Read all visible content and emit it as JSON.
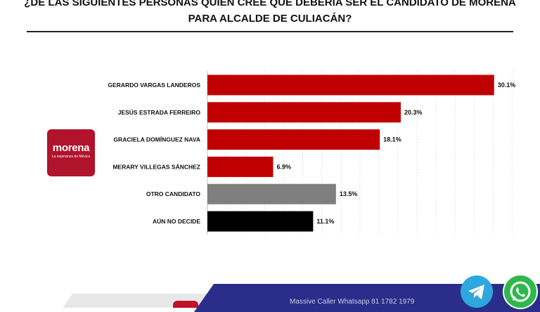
{
  "header": {
    "title_line1": "¿DE LAS SIGUIENTES PERSONAS QUIÉN CREE QUE DEBERÍA SER EL CANDIDATO DE MORENA",
    "title_line2": "PARA ALCALDE DE CULIACÁN?"
  },
  "logo": {
    "word": "morena",
    "tagline": "La esperanza de México"
  },
  "footer": {
    "text": "Massive Caller   Whatsapp   81 1782 1979"
  },
  "icons": {
    "telegram": "telegram-icon",
    "whatsapp": "whatsapp-icon"
  },
  "chart_data": {
    "type": "bar",
    "orientation": "horizontal",
    "categories": [
      "GERARDO VARGAS LANDEROS",
      "JESÚS ESTRADA FERREIRO",
      "GRACIELA DOMÍNGUEZ NAVA",
      "MERARY VILLEGAS SÁNCHEZ",
      "OTRO CANDIDATO",
      "AÚN NO DECIDE"
    ],
    "values": [
      30.1,
      20.3,
      18.1,
      6.9,
      13.5,
      11.1
    ],
    "value_labels": [
      "30.1%",
      "20.3%",
      "18.1%",
      "6.9%",
      "13.5%",
      "11.1%"
    ],
    "colors": [
      "#c00000",
      "#c00000",
      "#c00000",
      "#c00000",
      "#7f7f7f",
      "#000000"
    ],
    "xlim": [
      0,
      33
    ],
    "grid": true,
    "title": "",
    "xlabel": "",
    "ylabel": ""
  }
}
